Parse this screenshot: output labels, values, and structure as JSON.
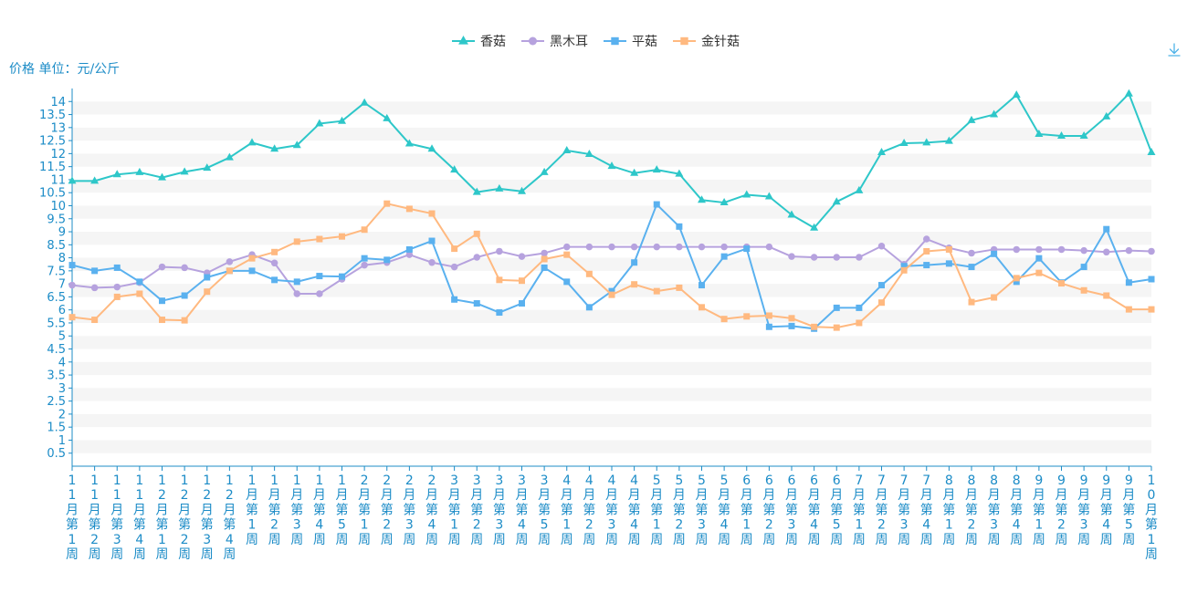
{
  "chart_data": {
    "type": "line",
    "title": "",
    "xlabel": "",
    "ylabel": "价格 单位：元/公斤",
    "ylim": [
      0,
      14.5
    ],
    "y_ticks": [
      0.5,
      1,
      1.5,
      2,
      2.5,
      3,
      3.5,
      4,
      4.5,
      5,
      5.5,
      6,
      6.5,
      7,
      7.5,
      8,
      8.5,
      9,
      9.5,
      10,
      10.5,
      11,
      11.5,
      12,
      12.5,
      13,
      13.5,
      14
    ],
    "grid": "horizontal bands",
    "legend_position": "top-center",
    "categories": [
      "11月第1周",
      "11月第2周",
      "11月第3周",
      "11月第4周",
      "12月第1周",
      "12月第2周",
      "12月第3周",
      "12月第4周",
      "1月第1周",
      "1月第2周",
      "1月第3周",
      "1月第4周",
      "1月第5周",
      "2月第1周",
      "2月第2周",
      "2月第3周",
      "2月第4周",
      "3月第1周",
      "3月第2周",
      "3月第3周",
      "3月第4周",
      "3月第5周",
      "4月第1周",
      "4月第2周",
      "4月第3周",
      "4月第4周",
      "5月第1周",
      "5月第2周",
      "5月第3周",
      "5月第4周",
      "6月第1周",
      "6月第2周",
      "6月第3周",
      "6月第4周",
      "6月第5周",
      "7月第1周",
      "7月第2周",
      "7月第3周",
      "7月第4周",
      "8月第1周",
      "8月第2周",
      "8月第3周",
      "8月第4周",
      "9月第1周",
      "9月第2周",
      "9月第3周",
      "9月第4周",
      "9月第5周",
      "10月第1周"
    ],
    "series": [
      {
        "name": "香菇",
        "color": "#2ec7c9",
        "marker": "triangle",
        "values": [
          10.95,
          10.95,
          11.2,
          11.28,
          11.08,
          11.3,
          11.45,
          11.85,
          12.42,
          12.18,
          12.32,
          13.15,
          13.25,
          13.95,
          13.35,
          12.38,
          12.18,
          11.38,
          10.52,
          10.65,
          10.55,
          11.28,
          12.12,
          11.98,
          11.52,
          11.25,
          11.38,
          11.22,
          10.22,
          10.12,
          10.42,
          10.35,
          9.65,
          9.15,
          10.15,
          10.58,
          12.05,
          12.4,
          12.42,
          12.48,
          13.28,
          13.5,
          14.25,
          12.75,
          12.68,
          12.68,
          13.42,
          14.3,
          12.05
        ]
      },
      {
        "name": "黑木耳",
        "color": "#b6a2de",
        "marker": "circle",
        "values": [
          6.95,
          6.85,
          6.88,
          7.05,
          7.65,
          7.62,
          7.42,
          7.85,
          8.12,
          7.8,
          6.62,
          6.62,
          7.18,
          7.72,
          7.82,
          8.12,
          7.82,
          7.65,
          8.02,
          8.25,
          8.05,
          8.18,
          8.42,
          8.42,
          8.42,
          8.42,
          8.42,
          8.42,
          8.42,
          8.42,
          8.42,
          8.42,
          8.05,
          8.02,
          8.02,
          8.02,
          8.45,
          7.75,
          8.72,
          8.38,
          8.18,
          8.32,
          8.32,
          8.32,
          8.32,
          8.28,
          8.22,
          8.28,
          8.25
        ]
      },
      {
        "name": "平菇",
        "color": "#5ab1ef",
        "marker": "square",
        "values": [
          7.72,
          7.5,
          7.62,
          7.08,
          6.35,
          6.55,
          7.25,
          7.5,
          7.5,
          7.15,
          7.08,
          7.3,
          7.28,
          7.98,
          7.92,
          8.32,
          8.65,
          6.4,
          6.25,
          5.9,
          6.25,
          7.62,
          7.08,
          6.1,
          6.72,
          7.82,
          10.05,
          9.2,
          6.95,
          8.05,
          8.35,
          5.35,
          5.38,
          5.28,
          6.08,
          6.08,
          6.95,
          7.68,
          7.72,
          7.78,
          7.65,
          8.15,
          7.08,
          7.98,
          7.05,
          7.65,
          9.1,
          7.05,
          7.18
        ]
      },
      {
        "name": "金针菇",
        "color": "#ffb980",
        "marker": "square",
        "values": [
          5.72,
          5.62,
          6.5,
          6.62,
          5.62,
          5.6,
          6.7,
          7.5,
          7.98,
          8.22,
          8.62,
          8.72,
          8.82,
          9.08,
          10.08,
          9.88,
          9.7,
          8.35,
          8.92,
          7.15,
          7.12,
          7.95,
          8.12,
          7.38,
          6.58,
          6.98,
          6.72,
          6.85,
          6.1,
          5.65,
          5.75,
          5.78,
          5.68,
          5.35,
          5.32,
          5.5,
          6.28,
          7.52,
          8.25,
          8.32,
          6.3,
          6.48,
          7.22,
          7.42,
          7.02,
          6.75,
          6.55,
          6.02,
          6.02
        ]
      }
    ]
  },
  "colors": {
    "axis": "#1c8cc7",
    "band": "#f5f5f5",
    "tool_icon": "#4fb3e8"
  },
  "toolbox": {
    "icon": "download-icon"
  }
}
